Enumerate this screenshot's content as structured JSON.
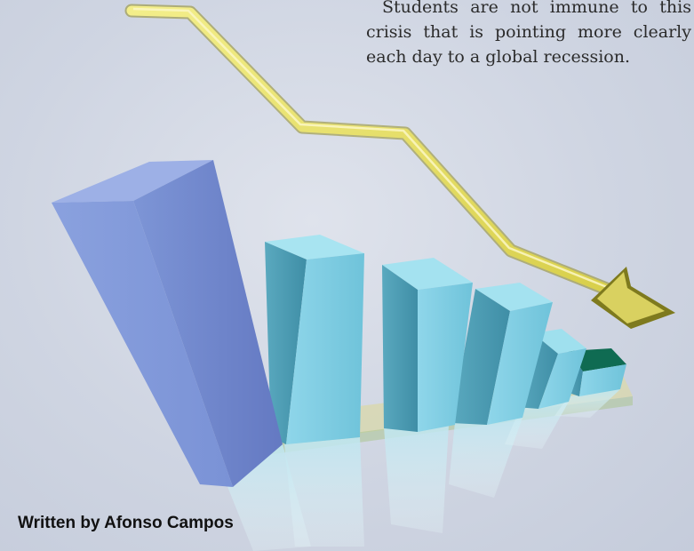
{
  "article": {
    "intro": "Students are not immune to this crisis that is pointing more clearly each day to a global recession.",
    "byline": "Written by Afonso Campos"
  },
  "illustration": {
    "subject": "3D bar chart with descending bars and a falling yellow trend arrow",
    "bars": 6,
    "colors": {
      "first_bar": "#6f88cf",
      "other_bars": "#82cbe0",
      "arrow": "#e6e06a",
      "background": "#cdd3e0"
    }
  }
}
